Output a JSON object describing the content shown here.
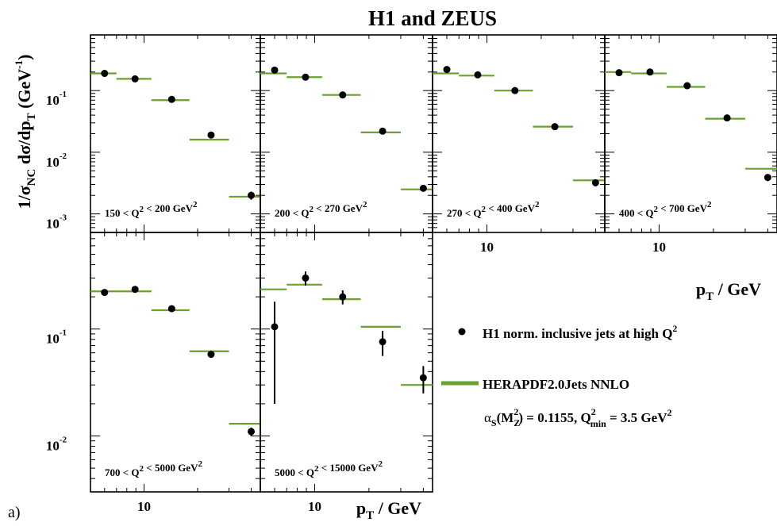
{
  "title": "H1 and ZEUS",
  "figure_tag": "a)",
  "xlabel": "p_T / GeV",
  "ylabel": "1/σ_NC dσ/dp_T (GeV^-1)",
  "colors": {
    "theory": "#6aa12e",
    "data": "#000000"
  },
  "legend": {
    "data_label": "H1 norm. inclusive jets at high Q²",
    "theory_label": "HERAPDF2.0Jets NNLO",
    "theory_sublabel": "αS(MZ²) = 0.1155, Q²min = 3.5 GeV²"
  },
  "chart_data": [
    {
      "type": "scatter",
      "bin_label": "150 < Q² < 200 GeV²",
      "xscale": "log",
      "yscale": "log",
      "xlim": [
        5,
        45
      ],
      "ylim": [
        0.0005,
        0.8
      ],
      "series": [
        {
          "name": "H1 norm. inclusive jets at high Q²",
          "points": [
            {
              "x": 6,
              "y": 0.19
            },
            {
              "x": 8.9,
              "y": 0.155
            },
            {
              "x": 14.3,
              "y": 0.072
            },
            {
              "x": 23.8,
              "y": 0.019
            },
            {
              "x": 40,
              "y": 0.002,
              "err": 0.0003
            }
          ]
        },
        {
          "name": "HERAPDF2.0Jets NNLO",
          "bins": [
            {
              "x": [
                5,
                7
              ],
              "y": 0.19
            },
            {
              "x": [
                7,
                11
              ],
              "y": 0.155
            },
            {
              "x": [
                11,
                18
              ],
              "y": 0.07
            },
            {
              "x": [
                18,
                30
              ],
              "y": 0.016
            },
            {
              "x": [
                30,
                50
              ],
              "y": 0.0019
            }
          ]
        }
      ]
    },
    {
      "type": "scatter",
      "bin_label": "200 < Q² < 270 GeV²",
      "xscale": "log",
      "yscale": "log",
      "xlim": [
        5,
        45
      ],
      "ylim": [
        0.0005,
        0.8
      ],
      "series": [
        {
          "name": "H1 norm. inclusive jets at high Q²",
          "points": [
            {
              "x": 6,
              "y": 0.215
            },
            {
              "x": 8.9,
              "y": 0.165
            },
            {
              "x": 14.3,
              "y": 0.085
            },
            {
              "x": 23.8,
              "y": 0.022
            },
            {
              "x": 40,
              "y": 0.0026,
              "err": 0.0003
            }
          ]
        },
        {
          "name": "HERAPDF2.0Jets NNLO",
          "bins": [
            {
              "x": [
                5,
                7
              ],
              "y": 0.19
            },
            {
              "x": [
                7,
                11
              ],
              "y": 0.165
            },
            {
              "x": [
                11,
                18
              ],
              "y": 0.085
            },
            {
              "x": [
                18,
                30
              ],
              "y": 0.021
            },
            {
              "x": [
                30,
                50
              ],
              "y": 0.0025
            }
          ]
        }
      ]
    },
    {
      "type": "scatter",
      "bin_label": "270 < Q² < 400 GeV²",
      "xscale": "log",
      "yscale": "log",
      "xlim": [
        5,
        45
      ],
      "ylim": [
        0.0005,
        0.8
      ],
      "series": [
        {
          "name": "H1 norm. inclusive jets at high Q²",
          "points": [
            {
              "x": 6,
              "y": 0.22
            },
            {
              "x": 8.9,
              "y": 0.18
            },
            {
              "x": 14.3,
              "y": 0.1
            },
            {
              "x": 23.8,
              "y": 0.026
            },
            {
              "x": 40,
              "y": 0.0032,
              "err": 0.0004
            }
          ]
        },
        {
          "name": "HERAPDF2.0Jets NNLO",
          "bins": [
            {
              "x": [
                5,
                7
              ],
              "y": 0.19
            },
            {
              "x": [
                7,
                11
              ],
              "y": 0.175
            },
            {
              "x": [
                11,
                18
              ],
              "y": 0.1
            },
            {
              "x": [
                18,
                30
              ],
              "y": 0.026
            },
            {
              "x": [
                30,
                50
              ],
              "y": 0.0035
            }
          ]
        }
      ]
    },
    {
      "type": "scatter",
      "bin_label": "400 < Q² < 700 GeV²",
      "xscale": "log",
      "yscale": "log",
      "xlim": [
        5,
        45
      ],
      "ylim": [
        0.0005,
        0.8
      ],
      "series": [
        {
          "name": "H1 norm. inclusive jets at high Q²",
          "points": [
            {
              "x": 6,
              "y": 0.195
            },
            {
              "x": 8.9,
              "y": 0.2
            },
            {
              "x": 14.3,
              "y": 0.12
            },
            {
              "x": 23.8,
              "y": 0.036
            },
            {
              "x": 40,
              "y": 0.0039,
              "err": 0.0005
            }
          ]
        },
        {
          "name": "HERAPDF2.0Jets NNLO",
          "bins": [
            {
              "x": [
                5,
                7
              ],
              "y": 0.2
            },
            {
              "x": [
                7,
                11
              ],
              "y": 0.19
            },
            {
              "x": [
                11,
                18
              ],
              "y": 0.115
            },
            {
              "x": [
                18,
                30
              ],
              "y": 0.035
            },
            {
              "x": [
                30,
                50
              ],
              "y": 0.0054
            }
          ]
        }
      ]
    },
    {
      "type": "scatter",
      "bin_label": "700 < Q² < 5000 GeV²",
      "xscale": "log",
      "yscale": "log",
      "xlim": [
        5,
        45
      ],
      "ylim": [
        0.003,
        0.8
      ],
      "series": [
        {
          "name": "H1 norm. inclusive jets at high Q²",
          "points": [
            {
              "x": 6,
              "y": 0.22
            },
            {
              "x": 8.9,
              "y": 0.235
            },
            {
              "x": 14.3,
              "y": 0.155
            },
            {
              "x": 23.8,
              "y": 0.058
            },
            {
              "x": 40,
              "y": 0.011,
              "err": 0.001
            }
          ]
        },
        {
          "name": "HERAPDF2.0Jets NNLO",
          "bins": [
            {
              "x": [
                5,
                7
              ],
              "y": 0.225
            },
            {
              "x": [
                7,
                11
              ],
              "y": 0.225
            },
            {
              "x": [
                11,
                18
              ],
              "y": 0.15
            },
            {
              "x": [
                18,
                30
              ],
              "y": 0.062
            },
            {
              "x": [
                30,
                50
              ],
              "y": 0.013
            }
          ]
        }
      ]
    },
    {
      "type": "scatter",
      "bin_label": "5000 < Q² < 15000 GeV²",
      "xscale": "log",
      "yscale": "log",
      "xlim": [
        5,
        45
      ],
      "ylim": [
        0.003,
        0.8
      ],
      "series": [
        {
          "name": "H1 norm. inclusive jets at high Q²",
          "points": [
            {
              "x": 6,
              "y": 0.105,
              "ylo": 0.02,
              "yhi": 0.18
            },
            {
              "x": 8.9,
              "y": 0.3,
              "err": 0.045
            },
            {
              "x": 14.3,
              "y": 0.2,
              "err": 0.03
            },
            {
              "x": 23.8,
              "y": 0.076,
              "err": 0.02
            },
            {
              "x": 40,
              "y": 0.035,
              "err": 0.01
            }
          ]
        },
        {
          "name": "HERAPDF2.0Jets NNLO",
          "bins": [
            {
              "x": [
                5,
                7
              ],
              "y": 0.235
            },
            {
              "x": [
                7,
                11
              ],
              "y": 0.26
            },
            {
              "x": [
                11,
                18
              ],
              "y": 0.19
            },
            {
              "x": [
                18,
                30
              ],
              "y": 0.105
            },
            {
              "x": [
                30,
                50
              ],
              "y": 0.03
            }
          ]
        }
      ]
    }
  ]
}
